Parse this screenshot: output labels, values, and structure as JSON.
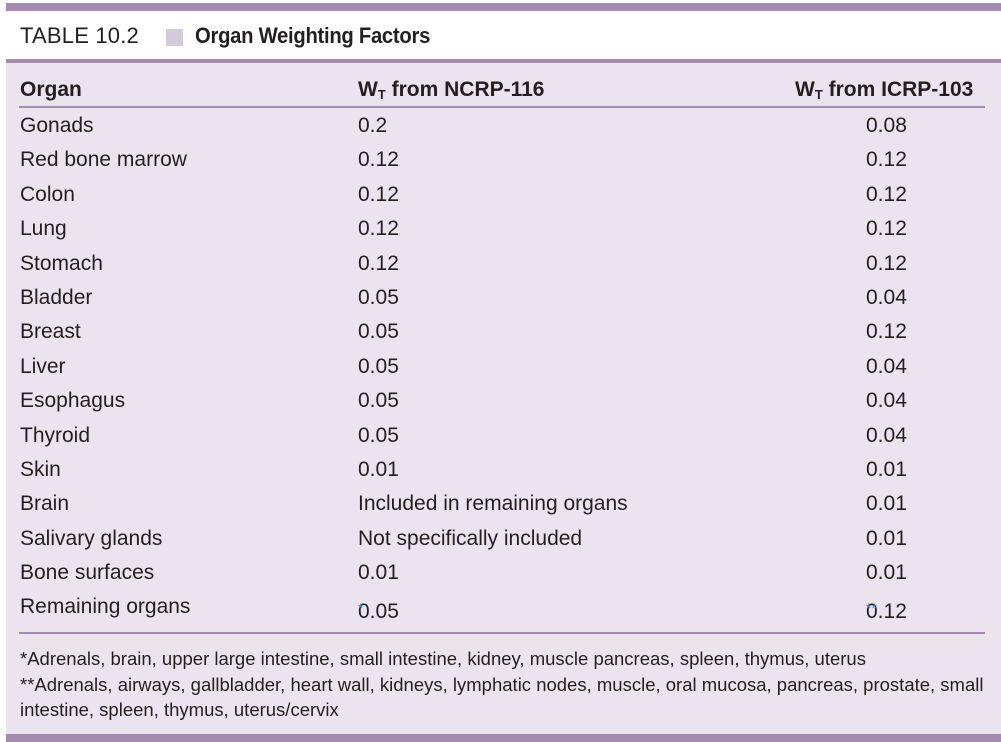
{
  "title": {
    "label": "TABLE 10.2",
    "text": "Organ Weighting Factors"
  },
  "header": {
    "organ": "Organ",
    "ncrp_prefix": "W",
    "ncrp_sub": "T",
    "ncrp_suffix": " from NCRP-116",
    "icrp_prefix": "W",
    "icrp_sub": "T",
    "icrp_suffix": " from ICRP-103"
  },
  "rows": [
    {
      "organ": "Gonads",
      "ncrp": "0.2",
      "icrp": "0.08"
    },
    {
      "organ": "Red bone marrow",
      "ncrp": "0.12",
      "icrp": "0.12"
    },
    {
      "organ": "Colon",
      "ncrp": "0.12",
      "icrp": "0.12"
    },
    {
      "organ": "Lung",
      "ncrp": "0.12",
      "icrp": "0.12"
    },
    {
      "organ": "Stomach",
      "ncrp": "0.12",
      "icrp": "0.12"
    },
    {
      "organ": "Bladder",
      "ncrp": "0.05",
      "icrp": "0.04"
    },
    {
      "organ": "Breast",
      "ncrp": "0.05",
      "icrp": "0.12"
    },
    {
      "organ": "Liver",
      "ncrp": "0.05",
      "icrp": "0.04"
    },
    {
      "organ": "Esophagus",
      "ncrp": "0.05",
      "icrp": "0.04"
    },
    {
      "organ": "Thyroid",
      "ncrp": "0.05",
      "icrp": "0.04"
    },
    {
      "organ": "Skin",
      "ncrp": "0.01",
      "icrp": "0.01"
    },
    {
      "organ": "Brain",
      "ncrp": "Included in remaining organs",
      "icrp": "0.01"
    },
    {
      "organ": "Salivary glands",
      "ncrp": "Not specifically included",
      "icrp": "0.01"
    },
    {
      "organ": "Bone surfaces",
      "ncrp": "0.01",
      "icrp": "0.01"
    },
    {
      "organ": "Remaining organs",
      "ncrp": "0.05",
      "ncrp_mark": "*",
      "icrp": "0.12",
      "icrp_mark": "**"
    }
  ],
  "footnotes": [
    "*Adrenals, brain, upper large intestine, small intestine, kidney, muscle pancreas, spleen, thymus, uterus",
    "**Adrenals, airways, gallbladder, heart wall, kidneys, lymphatic nodes, muscle, oral mucosa, pancreas, prostate, small intestine, spleen, thymus, uterus/cervix"
  ],
  "colors": {
    "rule": "#a68bb0",
    "panel": "#ebe4ef",
    "footnote_mark": "#3a8fc4"
  }
}
